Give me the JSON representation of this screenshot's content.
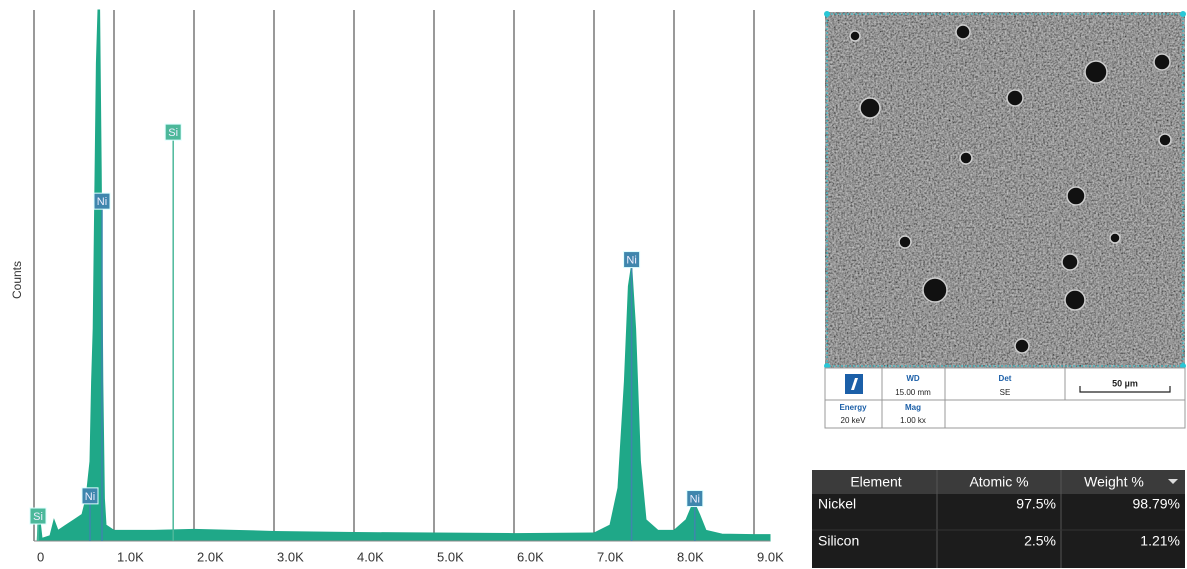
{
  "chart_data": {
    "type": "area",
    "y_label": "Counts",
    "x": [
      0,
      40,
      60,
      100,
      200,
      250,
      300,
      400,
      500,
      600,
      650,
      700,
      720,
      740,
      760,
      780,
      800,
      820,
      840,
      860,
      880,
      900,
      1000,
      1500,
      2000,
      2500,
      3000,
      4000,
      5000,
      6000,
      7000,
      7200,
      7300,
      7380,
      7430,
      7470,
      7520,
      7580,
      7650,
      7800,
      8000,
      8150,
      8220,
      8260,
      8320,
      8400,
      8600,
      9000,
      9200
    ],
    "series": [
      {
        "color": "#1fa888",
        "values": [
          0,
          0,
          6,
          0.5,
          1,
          4,
          2,
          3,
          4,
          5,
          8,
          15,
          30,
          40,
          65,
          90,
          100,
          100,
          70,
          30,
          8,
          3,
          2,
          2,
          2.2,
          2,
          1.8,
          1.6,
          1.5,
          1.4,
          1.5,
          3,
          10,
          30,
          48,
          52,
          40,
          15,
          4,
          2,
          2,
          4,
          6.5,
          7,
          5,
          2,
          1.3,
          1.2,
          1.2
        ]
      }
    ],
    "xlim": [
      0,
      9200
    ],
    "ylim": [
      0,
      100
    ],
    "xticks": [
      0,
      {
        "value": 1000,
        "label": "1.0K"
      },
      {
        "value": 2000,
        "label": "2.0K"
      },
      {
        "value": 3000,
        "label": "3.0K"
      },
      {
        "value": 4000,
        "label": "4.0K"
      },
      {
        "value": 5000,
        "label": "5.0K"
      },
      {
        "value": 6000,
        "label": "6.0K"
      },
      {
        "value": 7000,
        "label": "7.0K"
      },
      {
        "value": 8000,
        "label": "8.0K"
      },
      {
        "value": 9000,
        "label": "9.0K"
      }
    ],
    "grid": true,
    "markers": [
      {
        "label": "Si",
        "x": 50,
        "height": 4.7,
        "color": "#4cb89a"
      },
      {
        "label": "Ni",
        "x": 700,
        "height": 8.5,
        "color": "#3f86ad"
      },
      {
        "label": "Ni",
        "x": 850,
        "height": 64,
        "color": "#3f86ad"
      },
      {
        "label": "Si",
        "x": 1740,
        "height": 77,
        "color": "#4cb89a"
      },
      {
        "label": "Ni",
        "x": 7470,
        "height": 53,
        "color": "#3f86ad"
      },
      {
        "label": "Ni",
        "x": 8260,
        "height": 8,
        "color": "#3f86ad"
      }
    ]
  },
  "sem": {
    "wd_label": "WD",
    "wd": "15.00 mm",
    "det_label": "Det",
    "det": "SE",
    "scale": "50 µm",
    "energy_label": "Energy",
    "energy": "20 keV",
    "mag_label": "Mag",
    "mag": "1.00 kx"
  },
  "table": {
    "header": [
      "Element",
      "Atomic %",
      "Weight %"
    ],
    "rows": [
      [
        "Nickel",
        "97.5%",
        "98.79%"
      ],
      [
        "Silicon",
        "2.5%",
        "1.21%"
      ]
    ]
  }
}
